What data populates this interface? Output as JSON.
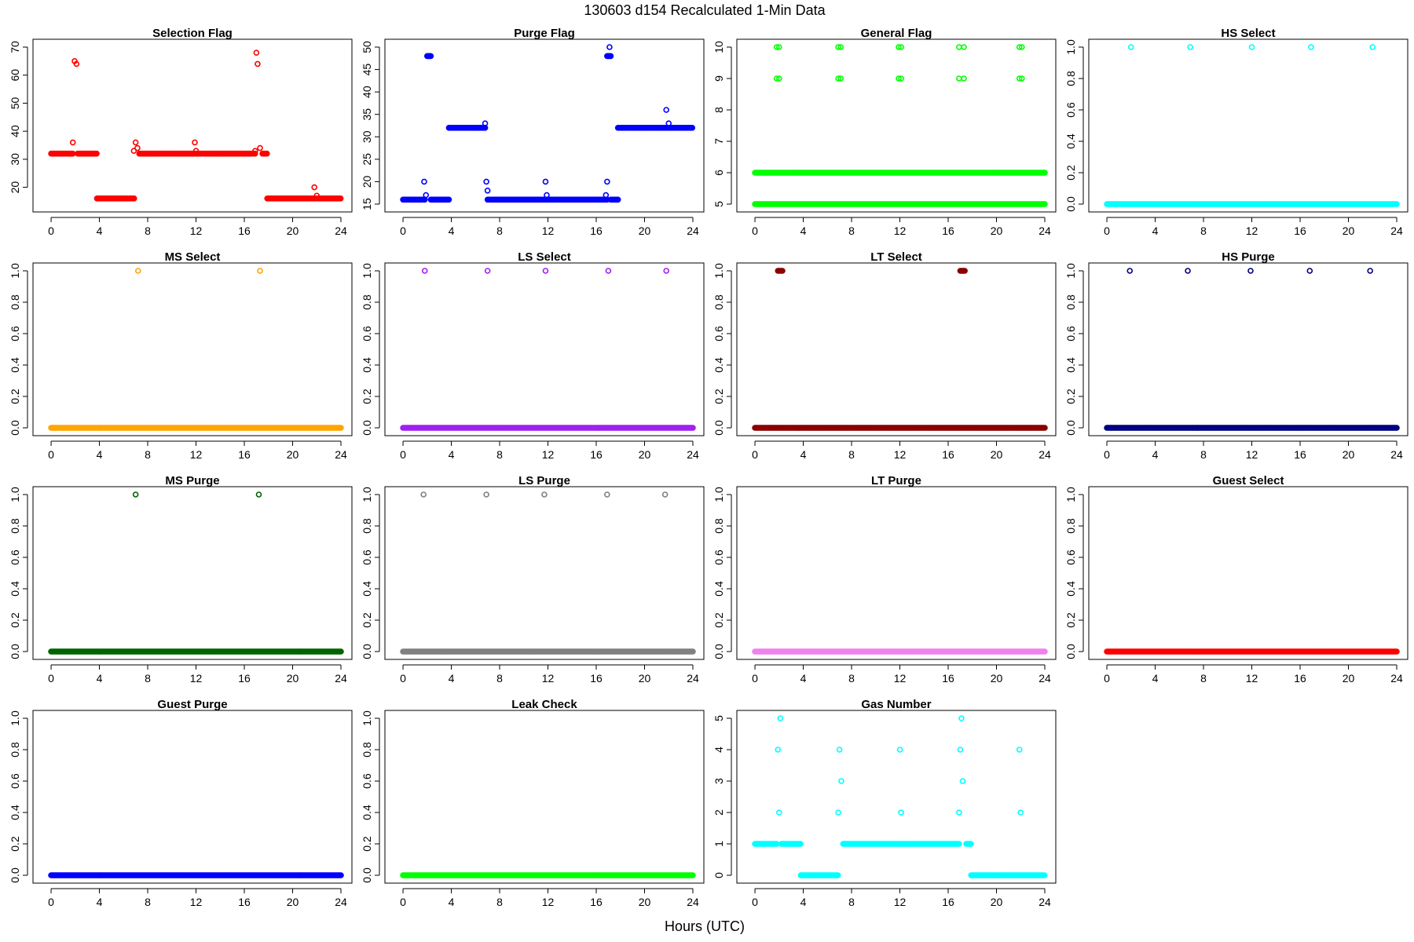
{
  "title": "130603   d154   Recalculated 1-Min Data",
  "xlabel": "Hours (UTC)",
  "chart_data": [
    {
      "type": "scatter",
      "title": "Selection Flag",
      "color": "#ff0000",
      "xlim": [
        0,
        24
      ],
      "ylim": [
        14,
        70
      ],
      "xticks": [
        0,
        4,
        8,
        12,
        16,
        20,
        24
      ],
      "yticks": [
        20,
        30,
        40,
        50,
        60,
        70
      ],
      "segments": [
        [
          0,
          1.8,
          32
        ],
        [
          2.2,
          3.8,
          32
        ],
        [
          3.8,
          6.9,
          16
        ],
        [
          7.3,
          16.9,
          32
        ],
        [
          17.5,
          17.9,
          32
        ],
        [
          17.9,
          24,
          16
        ]
      ],
      "points": [
        [
          1.8,
          36
        ],
        [
          1.95,
          65
        ],
        [
          2.1,
          64
        ],
        [
          6.85,
          33
        ],
        [
          7.0,
          36
        ],
        [
          7.15,
          34
        ],
        [
          11.9,
          36
        ],
        [
          12.0,
          33
        ],
        [
          16.9,
          33
        ],
        [
          17.0,
          68
        ],
        [
          17.1,
          64
        ],
        [
          17.3,
          34
        ],
        [
          21.8,
          20
        ],
        [
          22.0,
          17
        ]
      ]
    },
    {
      "type": "scatter",
      "title": "Purge Flag",
      "color": "#0000ff",
      "xlim": [
        0,
        24
      ],
      "ylim": [
        15,
        50
      ],
      "xticks": [
        0,
        4,
        8,
        12,
        16,
        20,
        24
      ],
      "yticks": [
        15,
        20,
        25,
        30,
        35,
        40,
        45,
        50
      ],
      "segments": [
        [
          0,
          1.8,
          16
        ],
        [
          2.0,
          2.3,
          48
        ],
        [
          2.3,
          3.8,
          16
        ],
        [
          3.8,
          6.8,
          32
        ],
        [
          7.0,
          16.9,
          16
        ],
        [
          16.9,
          17.2,
          48
        ],
        [
          17.2,
          17.8,
          16
        ],
        [
          17.8,
          24,
          32
        ]
      ],
      "points": [
        [
          1.75,
          20
        ],
        [
          1.9,
          17
        ],
        [
          6.8,
          33
        ],
        [
          6.9,
          20
        ],
        [
          7.0,
          18
        ],
        [
          11.8,
          20
        ],
        [
          11.9,
          17
        ],
        [
          16.8,
          17
        ],
        [
          16.9,
          20
        ],
        [
          17.1,
          50
        ],
        [
          21.8,
          36
        ],
        [
          22.0,
          33
        ]
      ]
    },
    {
      "type": "scatter",
      "title": "General Flag",
      "color": "#00ff00",
      "xlim": [
        0,
        24
      ],
      "ylim": [
        5,
        10
      ],
      "xticks": [
        0,
        4,
        8,
        12,
        16,
        20,
        24
      ],
      "yticks": [
        5,
        6,
        7,
        8,
        9,
        10
      ],
      "segments": [
        [
          0,
          24,
          5
        ],
        [
          0,
          24,
          6
        ]
      ],
      "points": [
        [
          1.8,
          10
        ],
        [
          2.0,
          10
        ],
        [
          1.8,
          9
        ],
        [
          2.0,
          9
        ],
        [
          6.9,
          10
        ],
        [
          7.1,
          10
        ],
        [
          6.9,
          9
        ],
        [
          7.1,
          9
        ],
        [
          11.9,
          10
        ],
        [
          12.1,
          10
        ],
        [
          11.9,
          9
        ],
        [
          12.1,
          9
        ],
        [
          16.9,
          10
        ],
        [
          17.3,
          10
        ],
        [
          16.9,
          9
        ],
        [
          17.3,
          9
        ],
        [
          21.9,
          10
        ],
        [
          22.1,
          10
        ],
        [
          21.9,
          9
        ],
        [
          22.1,
          9
        ]
      ]
    },
    {
      "type": "scatter",
      "title": "HS Select",
      "color": "#00ffff",
      "xlim": [
        0,
        24
      ],
      "ylim": [
        0,
        1
      ],
      "xticks": [
        0,
        4,
        8,
        12,
        16,
        20,
        24
      ],
      "yticks": [
        0,
        0.2,
        0.4,
        0.6,
        0.8,
        1.0
      ],
      "segments": [
        [
          0,
          24,
          0
        ]
      ],
      "points": [
        [
          2.0,
          1
        ],
        [
          6.9,
          1
        ],
        [
          12.0,
          1
        ],
        [
          16.9,
          1
        ],
        [
          22.0,
          1
        ]
      ]
    },
    {
      "type": "scatter",
      "title": "MS Select",
      "color": "#ffa500",
      "xlim": [
        0,
        24
      ],
      "ylim": [
        0,
        1
      ],
      "xticks": [
        0,
        4,
        8,
        12,
        16,
        20,
        24
      ],
      "yticks": [
        0,
        0.2,
        0.4,
        0.6,
        0.8,
        1.0
      ],
      "segments": [
        [
          0,
          24,
          0
        ]
      ],
      "points": [
        [
          7.2,
          1
        ],
        [
          17.3,
          1
        ]
      ]
    },
    {
      "type": "scatter",
      "title": "LS Select",
      "color": "#a020f0",
      "xlim": [
        0,
        24
      ],
      "ylim": [
        0,
        1
      ],
      "xticks": [
        0,
        4,
        8,
        12,
        16,
        20,
        24
      ],
      "yticks": [
        0,
        0.2,
        0.4,
        0.6,
        0.8,
        1.0
      ],
      "segments": [
        [
          0,
          24,
          0
        ]
      ],
      "points": [
        [
          1.8,
          1
        ],
        [
          7.0,
          1
        ],
        [
          11.8,
          1
        ],
        [
          17.0,
          1
        ],
        [
          21.8,
          1
        ]
      ]
    },
    {
      "type": "scatter",
      "title": "LT Select",
      "color": "#8b0000",
      "xlim": [
        0,
        24
      ],
      "ylim": [
        0,
        1
      ],
      "xticks": [
        0,
        4,
        8,
        12,
        16,
        20,
        24
      ],
      "yticks": [
        0,
        0.2,
        0.4,
        0.6,
        0.8,
        1.0
      ],
      "segments": [
        [
          0,
          24,
          0
        ],
        [
          1.9,
          2.3,
          1
        ],
        [
          17.0,
          17.4,
          1
        ]
      ],
      "points": []
    },
    {
      "type": "scatter",
      "title": "HS Purge",
      "color": "#000080",
      "xlim": [
        0,
        24
      ],
      "ylim": [
        0,
        1
      ],
      "xticks": [
        0,
        4,
        8,
        12,
        16,
        20,
        24
      ],
      "yticks": [
        0,
        0.2,
        0.4,
        0.6,
        0.8,
        1.0
      ],
      "segments": [
        [
          0,
          24,
          0
        ]
      ],
      "points": [
        [
          1.9,
          1
        ],
        [
          6.7,
          1
        ],
        [
          11.9,
          1
        ],
        [
          16.8,
          1
        ],
        [
          21.8,
          1
        ]
      ]
    },
    {
      "type": "scatter",
      "title": "MS Purge",
      "color": "#006400",
      "xlim": [
        0,
        24
      ],
      "ylim": [
        0,
        1
      ],
      "xticks": [
        0,
        4,
        8,
        12,
        16,
        20,
        24
      ],
      "yticks": [
        0,
        0.2,
        0.4,
        0.6,
        0.8,
        1.0
      ],
      "segments": [
        [
          0,
          24,
          0
        ]
      ],
      "points": [
        [
          7.0,
          1
        ],
        [
          17.2,
          1
        ]
      ]
    },
    {
      "type": "scatter",
      "title": "LS Purge",
      "color": "#808080",
      "xlim": [
        0,
        24
      ],
      "ylim": [
        0,
        1
      ],
      "xticks": [
        0,
        4,
        8,
        12,
        16,
        20,
        24
      ],
      "yticks": [
        0,
        0.2,
        0.4,
        0.6,
        0.8,
        1.0
      ],
      "segments": [
        [
          0,
          24,
          0
        ]
      ],
      "points": [
        [
          1.7,
          1
        ],
        [
          6.9,
          1
        ],
        [
          11.7,
          1
        ],
        [
          16.9,
          1
        ],
        [
          21.7,
          1
        ]
      ]
    },
    {
      "type": "scatter",
      "title": "LT Purge",
      "color": "#ee82ee",
      "xlim": [
        0,
        24
      ],
      "ylim": [
        0,
        1
      ],
      "xticks": [
        0,
        4,
        8,
        12,
        16,
        20,
        24
      ],
      "yticks": [
        0,
        0.2,
        0.4,
        0.6,
        0.8,
        1.0
      ],
      "segments": [
        [
          0,
          24,
          0
        ]
      ],
      "points": []
    },
    {
      "type": "scatter",
      "title": "Guest Select",
      "color": "#ff0000",
      "xlim": [
        0,
        24
      ],
      "ylim": [
        0,
        1
      ],
      "xticks": [
        0,
        4,
        8,
        12,
        16,
        20,
        24
      ],
      "yticks": [
        0,
        0.2,
        0.4,
        0.6,
        0.8,
        1.0
      ],
      "segments": [
        [
          0,
          24,
          0
        ]
      ],
      "points": []
    },
    {
      "type": "scatter",
      "title": "Guest Purge",
      "color": "#0000ff",
      "xlim": [
        0,
        24
      ],
      "ylim": [
        0,
        1
      ],
      "xticks": [
        0,
        4,
        8,
        12,
        16,
        20,
        24
      ],
      "yticks": [
        0,
        0.2,
        0.4,
        0.6,
        0.8,
        1.0
      ],
      "segments": [
        [
          0,
          24,
          0
        ]
      ],
      "points": []
    },
    {
      "type": "scatter",
      "title": "Leak Check",
      "color": "#00ff00",
      "xlim": [
        0,
        24
      ],
      "ylim": [
        0,
        1
      ],
      "xticks": [
        0,
        4,
        8,
        12,
        16,
        20,
        24
      ],
      "yticks": [
        0,
        0.2,
        0.4,
        0.6,
        0.8,
        1.0
      ],
      "segments": [
        [
          0,
          24,
          0
        ]
      ],
      "points": []
    },
    {
      "type": "scatter",
      "title": "Gas Number",
      "color": "#00ffff",
      "xlim": [
        0,
        24
      ],
      "ylim": [
        0,
        5
      ],
      "xticks": [
        0,
        4,
        8,
        12,
        16,
        20,
        24
      ],
      "yticks": [
        0,
        1,
        2,
        3,
        4,
        5
      ],
      "segments": [
        [
          0,
          1.8,
          1
        ],
        [
          2.2,
          3.8,
          1
        ],
        [
          3.8,
          6.9,
          0
        ],
        [
          7.3,
          16.9,
          1
        ],
        [
          17.5,
          17.9,
          1
        ],
        [
          17.9,
          24,
          0
        ]
      ],
      "points": [
        [
          1.9,
          4
        ],
        [
          2.0,
          2
        ],
        [
          2.1,
          5
        ],
        [
          7.0,
          4
        ],
        [
          7.15,
          3
        ],
        [
          6.9,
          2
        ],
        [
          12.0,
          4
        ],
        [
          12.1,
          2
        ],
        [
          17.0,
          4
        ],
        [
          16.9,
          2
        ],
        [
          17.1,
          5
        ],
        [
          17.2,
          3
        ],
        [
          21.9,
          4
        ],
        [
          22.0,
          2
        ]
      ]
    }
  ]
}
